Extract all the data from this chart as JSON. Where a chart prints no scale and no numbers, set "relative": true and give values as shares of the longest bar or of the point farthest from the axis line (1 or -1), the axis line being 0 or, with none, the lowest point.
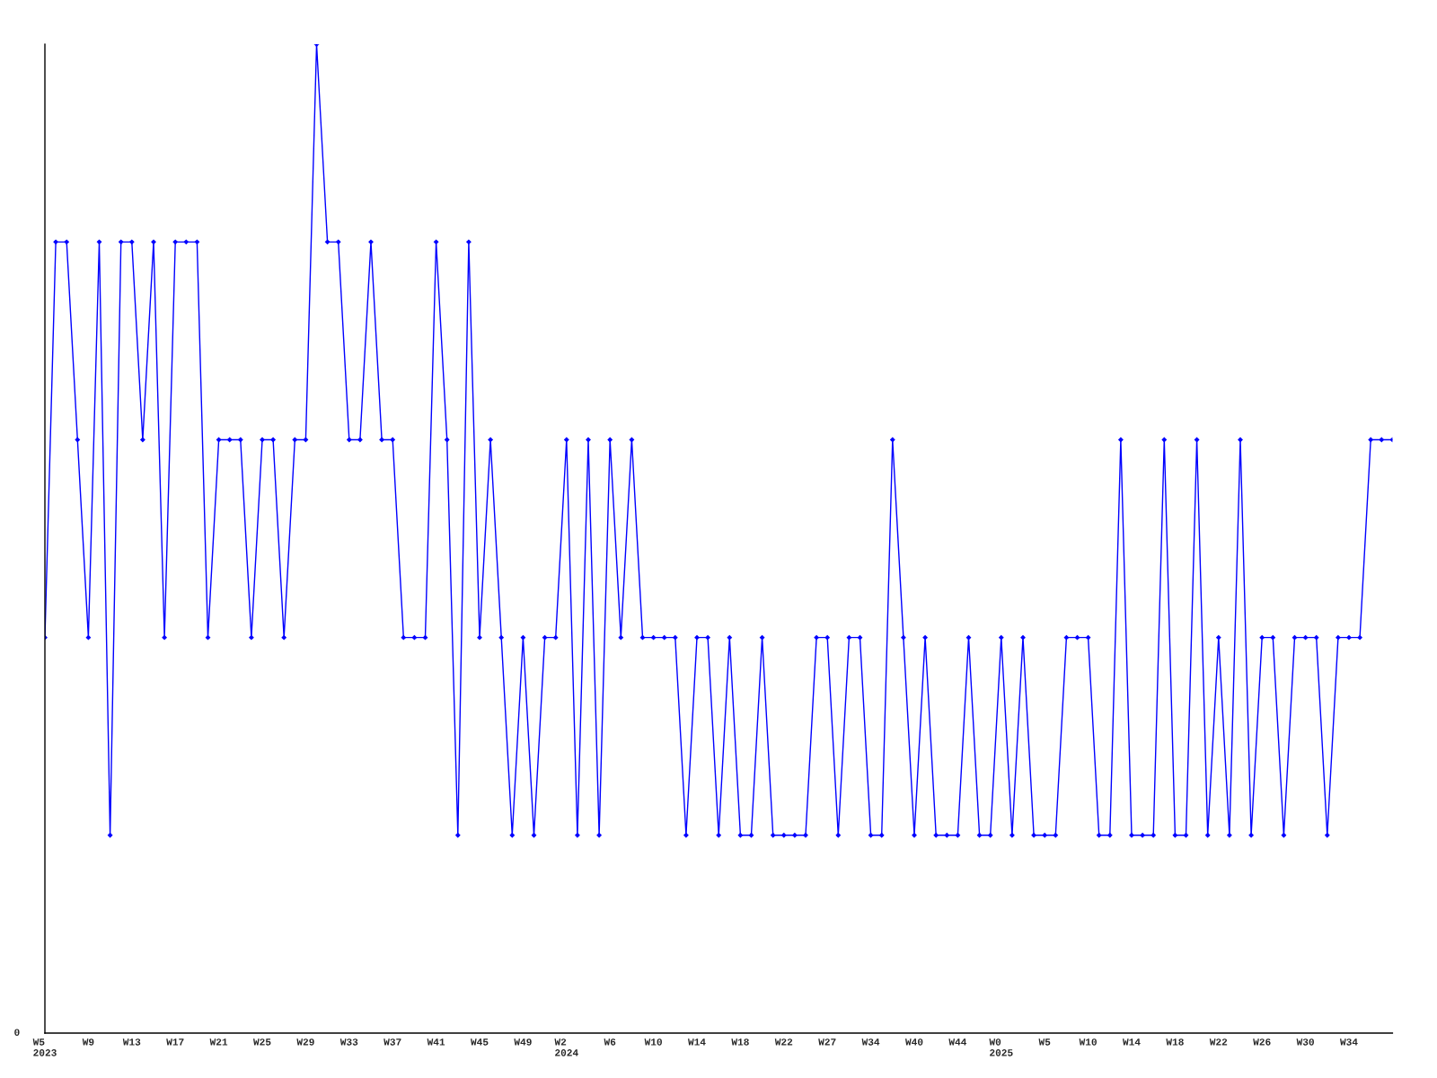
{
  "chart_data": {
    "type": "line",
    "relative": true,
    "marker": "diamond",
    "line_style": "solid",
    "grid": false,
    "annotations": [
      "0"
    ],
    "categories": [
      "W5\n2023",
      null,
      null,
      null,
      "W9",
      null,
      null,
      null,
      "W13",
      null,
      null,
      null,
      "W17",
      null,
      null,
      null,
      "W21",
      null,
      null,
      null,
      "W25",
      null,
      null,
      null,
      "W29",
      null,
      null,
      null,
      "W33",
      null,
      null,
      null,
      "W37",
      null,
      null,
      null,
      "W41",
      null,
      null,
      null,
      "W45",
      null,
      null,
      null,
      "W49",
      null,
      null,
      null,
      "W2\n2024",
      null,
      null,
      null,
      "W6",
      null,
      null,
      null,
      "W10",
      null,
      null,
      null,
      "W14",
      null,
      null,
      null,
      "W18",
      null,
      null,
      null,
      "W22",
      null,
      null,
      null,
      "W27",
      null,
      null,
      null,
      "W34",
      null,
      null,
      null,
      "W40",
      null,
      null,
      null,
      "W44",
      null,
      null,
      null,
      "W0\n2025",
      null,
      null,
      null,
      "W5",
      null,
      null,
      null,
      "W10",
      null,
      null,
      null,
      "W14",
      null,
      null,
      null,
      "W18",
      null,
      null,
      null,
      "W22",
      null,
      null,
      null,
      "W26",
      null,
      null,
      null,
      "W30",
      null,
      null,
      null,
      "W34",
      null,
      null,
      null,
      null
    ],
    "series": [
      {
        "color": "#0000ff",
        "values": [
          0.4,
          0.8,
          0.8,
          0.6,
          0.4,
          0.8,
          0.2,
          0.8,
          0.8,
          0.6,
          0.8,
          0.4,
          0.8,
          0.8,
          0.8,
          0.4,
          0.6,
          0.6,
          0.6,
          0.4,
          0.6,
          0.6,
          0.4,
          0.6,
          0.6,
          1.0,
          0.8,
          0.8,
          0.6,
          0.6,
          0.8,
          0.6,
          0.6,
          0.4,
          0.4,
          0.4,
          0.8,
          0.6,
          0.2,
          0.8,
          0.4,
          0.6,
          0.4,
          0.2,
          0.4,
          0.2,
          0.4,
          0.4,
          0.6,
          0.2,
          0.6,
          0.2,
          0.6,
          0.4,
          0.6,
          0.4,
          0.4,
          0.4,
          0.4,
          0.2,
          0.4,
          0.4,
          0.2,
          0.4,
          0.2,
          0.2,
          0.4,
          0.2,
          0.2,
          0.2,
          0.2,
          0.4,
          0.4,
          0.2,
          0.4,
          0.4,
          0.2,
          0.2,
          0.6,
          0.4,
          0.2,
          0.4,
          0.2,
          0.2,
          0.2,
          0.4,
          0.2,
          0.2,
          0.4,
          0.2,
          0.4,
          0.2,
          0.2,
          0.2,
          0.4,
          0.4,
          0.4,
          0.2,
          0.2,
          0.6,
          0.2,
          0.2,
          0.2,
          0.6,
          0.2,
          0.2,
          0.6,
          0.2,
          0.4,
          0.2,
          0.6,
          0.2,
          0.4,
          0.4,
          0.2,
          0.4,
          0.4,
          0.4,
          0.2,
          0.4,
          0.4,
          0.4,
          0.6,
          0.6,
          0.6
        ]
      }
    ]
  }
}
